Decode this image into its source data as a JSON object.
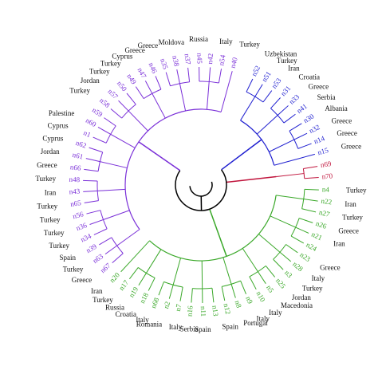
{
  "clusters": [
    {
      "color": "#1f1fd0",
      "leaves": [
        {
          "label": "n52",
          "country": "Uzbekistan"
        },
        {
          "label": "n51",
          "country": "Turkey"
        },
        {
          "label": "n53",
          "country": "Iran"
        },
        {
          "label": "n31",
          "country": "Croatia"
        },
        {
          "label": "n33",
          "country": "Greece"
        },
        {
          "label": "n41",
          "country": "Serbia"
        },
        {
          "label": "n30",
          "country": "Albania"
        },
        {
          "label": "n32",
          "country": "Greece"
        },
        {
          "label": "n14",
          "country": "Greece"
        },
        {
          "label": "n15",
          "country": "Greece"
        }
      ]
    },
    {
      "color": "#c0143c",
      "leaves": [
        {
          "label": "n69"
        },
        {
          "label": "n70"
        }
      ]
    },
    {
      "color": "#3aa829",
      "leaves": [
        {
          "label": "n4",
          "country": "Turkey"
        },
        {
          "label": "n22",
          "country": "Iran"
        },
        {
          "label": "n27",
          "country": "Turkey"
        },
        {
          "label": "n26",
          "country": "Greece"
        },
        {
          "label": "n21",
          "country": "Iran"
        },
        {
          "label": "n24"
        },
        {
          "label": "n23",
          "country": "Greece"
        },
        {
          "label": "n28",
          "country": "Italy"
        },
        {
          "label": "n3",
          "country": "Turkey"
        },
        {
          "label": "n25",
          "country": "Jordan"
        },
        {
          "label": "n5",
          "country": "Macedonia"
        },
        {
          "label": "n10",
          "country": "Italy"
        },
        {
          "label": "n9",
          "country": "Italy"
        },
        {
          "label": "n8",
          "country": "Portugal"
        },
        {
          "label": "n12",
          "country": "Spain"
        },
        {
          "label": "n13"
        },
        {
          "label": "n11",
          "country": "Spain"
        },
        {
          "label": "n16",
          "country": "Serbia"
        },
        {
          "label": "n7",
          "country": "Italy"
        },
        {
          "label": "n2",
          "country": "Romania"
        },
        {
          "label": "n68",
          "country": "Italy"
        },
        {
          "label": "n18",
          "country": "Croatia"
        },
        {
          "label": "n19",
          "country": "Russia"
        },
        {
          "label": "n17",
          "country": "Turkey"
        },
        {
          "label": "n20",
          "country": "Iran"
        }
      ]
    },
    {
      "color": "#7a2fd8",
      "leaves": [
        {
          "label": "n67",
          "country": "Greece"
        },
        {
          "label": "n63",
          "country": "Turkey"
        },
        {
          "label": "n39",
          "country": "Spain"
        },
        {
          "label": "n34",
          "country": "Turkey"
        },
        {
          "label": "n36",
          "country": "Turkey"
        },
        {
          "label": "n56",
          "country": "Turkey"
        },
        {
          "label": "n65",
          "country": "Turkey"
        },
        {
          "label": "n43",
          "country": "Iran"
        },
        {
          "label": "n48",
          "country": "Turkey"
        },
        {
          "label": "n66",
          "country": "Greece"
        },
        {
          "label": "n61",
          "country": "Jordan"
        },
        {
          "label": "n62",
          "country": "Cyprus"
        },
        {
          "label": "n1",
          "country": "Cyprus"
        },
        {
          "label": "n60",
          "country": "Palestine"
        },
        {
          "label": "n59"
        },
        {
          "label": "n58",
          "country": "Turkey"
        },
        {
          "label": "n57",
          "country": "Jordan"
        },
        {
          "label": "n50",
          "country": "Turkey"
        },
        {
          "label": "n49",
          "country": "Turkey"
        },
        {
          "label": "n47",
          "country": "Cyprus"
        },
        {
          "label": "n46",
          "country": "Greece"
        },
        {
          "label": "n35",
          "country": "Greece"
        },
        {
          "label": "n38",
          "country": "Moldova"
        },
        {
          "label": "n37"
        },
        {
          "label": "n45",
          "country": "Russia"
        },
        {
          "label": "n42"
        },
        {
          "label": "n54",
          "country": "Italy"
        },
        {
          "label": "n40",
          "country": "Turkey"
        }
      ]
    }
  ]
}
